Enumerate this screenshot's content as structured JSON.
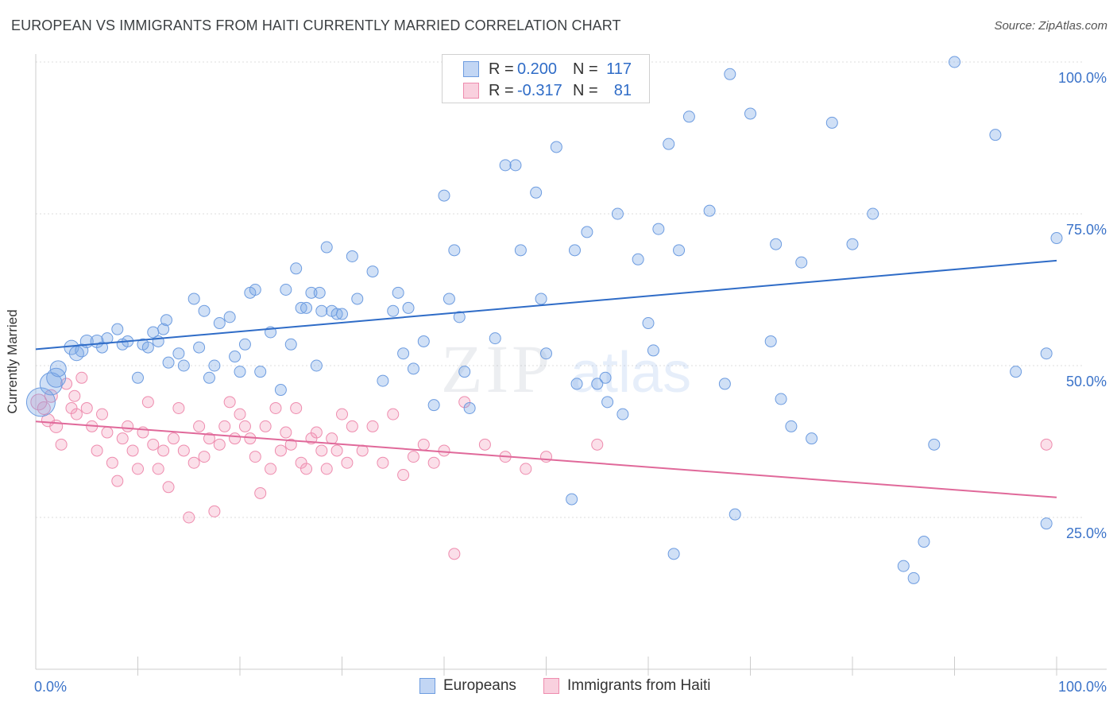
{
  "header": {
    "title": "EUROPEAN VS IMMIGRANTS FROM HAITI CURRENTLY MARRIED CORRELATION CHART",
    "source": "Source: ZipAtlas.com"
  },
  "watermark": {
    "zip": "ZIP",
    "atlas": "atlas"
  },
  "legend_top": {
    "rows": [
      {
        "r_label": "R =",
        "r_value": "0.200",
        "n_label": "N =",
        "n_value": "117",
        "color": "#7aa6e6"
      },
      {
        "r_label": "R =",
        "r_value": "-0.317",
        "n_label": "N =",
        "n_value": "81",
        "color": "#f29bb8"
      }
    ]
  },
  "bottom_legend": {
    "europeans": "Europeans",
    "haiti": "Immigrants from Haiti"
  },
  "colors": {
    "blue_fill": "rgba(120,165,230,0.35)",
    "blue_stroke": "#6d9ce0",
    "blue_line": "#2f6cc7",
    "pink_fill": "rgba(242,150,182,0.30)",
    "pink_stroke": "#ee8cae",
    "pink_line": "#e0699a",
    "grid": "#dddddd",
    "tick_label": "#3b73c9"
  },
  "chart_data": {
    "type": "scatter",
    "title": "EUROPEAN VS IMMIGRANTS FROM HAITI CURRENTLY MARRIED CORRELATION CHART",
    "xlabel": "",
    "ylabel": "Currently Married",
    "xlim": [
      0,
      100
    ],
    "ylim": [
      0,
      100
    ],
    "x_tick_labels": [
      "0.0%",
      "100.0%"
    ],
    "y_tick_labels": [
      {
        "value": 25,
        "label": "25.0%"
      },
      {
        "value": 50,
        "label": "50.0%"
      },
      {
        "value": 75,
        "label": "75.0%"
      },
      {
        "value": 100,
        "label": "100.0%"
      }
    ],
    "grid": true,
    "legend_position": "top-center",
    "series": [
      {
        "name": "Europeans",
        "R": 0.2,
        "N": 117,
        "trend": {
          "x": [
            0,
            100
          ],
          "y": [
            52.7,
            67.3
          ]
        },
        "points": [
          [
            0.5,
            44,
            18
          ],
          [
            1.5,
            47,
            14
          ],
          [
            2,
            48,
            12
          ],
          [
            2.2,
            49.5,
            10
          ],
          [
            3.5,
            53,
            9
          ],
          [
            4,
            52,
            9
          ],
          [
            4.5,
            52.5,
            8
          ],
          [
            5,
            54,
            8
          ],
          [
            6,
            54,
            8
          ],
          [
            6.5,
            53,
            7
          ],
          [
            7,
            54.5,
            7
          ],
          [
            8,
            56,
            7
          ],
          [
            8.5,
            53.5,
            7
          ],
          [
            9,
            54,
            7
          ],
          [
            10,
            48,
            7
          ],
          [
            10.5,
            53.5,
            7
          ],
          [
            11,
            53,
            7
          ],
          [
            11.5,
            55.5,
            7
          ],
          [
            12,
            54,
            7
          ],
          [
            12.5,
            56,
            7
          ],
          [
            12.8,
            57.5,
            7
          ],
          [
            13,
            50.5,
            7
          ],
          [
            14,
            52,
            7
          ],
          [
            14.5,
            50,
            7
          ],
          [
            15.5,
            61,
            7
          ],
          [
            16,
            53,
            7
          ],
          [
            16.5,
            59,
            7
          ],
          [
            17,
            48,
            7
          ],
          [
            17.5,
            50,
            7
          ],
          [
            18,
            57,
            7
          ],
          [
            19,
            58,
            7
          ],
          [
            19.5,
            51.5,
            7
          ],
          [
            20,
            49,
            7
          ],
          [
            20.5,
            53.5,
            7
          ],
          [
            21,
            62,
            7
          ],
          [
            21.5,
            62.5,
            7
          ],
          [
            22,
            49,
            7
          ],
          [
            23,
            55.5,
            7
          ],
          [
            24,
            46,
            7
          ],
          [
            24.5,
            62.5,
            7
          ],
          [
            25,
            53.5,
            7
          ],
          [
            25.5,
            66,
            7
          ],
          [
            26,
            59.5,
            7
          ],
          [
            26.5,
            59.5,
            7
          ],
          [
            27,
            62,
            7
          ],
          [
            27.5,
            50,
            7
          ],
          [
            27.8,
            62,
            7
          ],
          [
            28,
            59,
            7
          ],
          [
            28.5,
            69.5,
            7
          ],
          [
            29,
            59,
            7
          ],
          [
            29.5,
            58.5,
            7
          ],
          [
            30,
            58.5,
            7
          ],
          [
            31,
            68,
            7
          ],
          [
            31.5,
            61,
            7
          ],
          [
            33,
            65.5,
            7
          ],
          [
            34,
            47.5,
            7
          ],
          [
            35,
            59,
            7
          ],
          [
            35.5,
            62,
            7
          ],
          [
            36,
            52,
            7
          ],
          [
            36.5,
            59.5,
            7
          ],
          [
            37,
            49.5,
            7
          ],
          [
            38,
            54,
            7
          ],
          [
            39,
            43.5,
            7
          ],
          [
            40,
            78,
            7
          ],
          [
            40.5,
            61,
            7
          ],
          [
            41,
            69,
            7
          ],
          [
            41.5,
            58,
            7
          ],
          [
            42,
            49,
            7
          ],
          [
            42.5,
            43,
            7
          ],
          [
            45,
            54.5,
            7
          ],
          [
            46,
            83,
            7
          ],
          [
            47,
            83,
            7
          ],
          [
            47.5,
            69,
            7
          ],
          [
            49,
            78.5,
            7
          ],
          [
            49.5,
            61,
            7
          ],
          [
            50,
            52,
            7
          ],
          [
            51,
            86,
            7
          ],
          [
            52,
            100,
            7
          ],
          [
            52.5,
            28,
            7
          ],
          [
            52.8,
            69,
            7
          ],
          [
            53,
            47,
            7
          ],
          [
            54,
            72,
            7
          ],
          [
            55,
            47,
            7
          ],
          [
            55.5,
            95,
            7
          ],
          [
            55.8,
            48,
            7
          ],
          [
            56,
            44,
            7
          ],
          [
            57,
            75,
            7
          ],
          [
            57.5,
            42,
            7
          ],
          [
            59,
            67.5,
            7
          ],
          [
            60,
            57,
            7
          ],
          [
            60.5,
            52.5,
            7
          ],
          [
            61,
            72.5,
            7
          ],
          [
            62,
            86.5,
            7
          ],
          [
            62.5,
            19,
            7
          ],
          [
            63,
            69,
            7
          ],
          [
            64,
            91,
            7
          ],
          [
            66,
            75.5,
            7
          ],
          [
            67.5,
            47,
            7
          ],
          [
            68,
            98,
            7
          ],
          [
            68.5,
            25.5,
            7
          ],
          [
            70,
            91.5,
            7
          ],
          [
            72,
            54,
            7
          ],
          [
            72.5,
            70,
            7
          ],
          [
            73,
            44.5,
            7
          ],
          [
            74,
            40,
            7
          ],
          [
            75,
            67,
            7
          ],
          [
            76,
            38,
            7
          ],
          [
            78,
            90,
            7
          ],
          [
            80,
            70,
            7
          ],
          [
            82,
            75,
            7
          ],
          [
            85,
            17,
            7
          ],
          [
            86,
            15,
            7
          ],
          [
            87,
            21,
            7
          ],
          [
            88,
            37,
            7
          ],
          [
            90,
            100,
            7
          ],
          [
            94,
            88,
            7
          ],
          [
            96,
            49,
            7
          ],
          [
            99,
            52,
            7
          ],
          [
            99,
            24,
            7
          ],
          [
            100,
            71,
            7
          ]
        ]
      },
      {
        "name": "Immigrants from Haiti",
        "R": -0.317,
        "N": 81,
        "trend": {
          "x": [
            0,
            100
          ],
          "y": [
            40.8,
            28.3
          ]
        },
        "points": [
          [
            0.3,
            44,
            10
          ],
          [
            0.8,
            43,
            8
          ],
          [
            1.2,
            41,
            8
          ],
          [
            1.5,
            45,
            8
          ],
          [
            2,
            40,
            8
          ],
          [
            2.5,
            37,
            7
          ],
          [
            3,
            47,
            7
          ],
          [
            3.5,
            43,
            7
          ],
          [
            3.8,
            45,
            7
          ],
          [
            4,
            42,
            7
          ],
          [
            4.5,
            48,
            7
          ],
          [
            5,
            43,
            7
          ],
          [
            5.5,
            40,
            7
          ],
          [
            6,
            36,
            7
          ],
          [
            6.5,
            42,
            7
          ],
          [
            7,
            39,
            7
          ],
          [
            7.5,
            34,
            7
          ],
          [
            8,
            31,
            7
          ],
          [
            8.5,
            38,
            7
          ],
          [
            9,
            40,
            7
          ],
          [
            9.5,
            36,
            7
          ],
          [
            10,
            33,
            7
          ],
          [
            10.5,
            39,
            7
          ],
          [
            11,
            44,
            7
          ],
          [
            11.5,
            37,
            7
          ],
          [
            12,
            33,
            7
          ],
          [
            12.5,
            36,
            7
          ],
          [
            13,
            30,
            7
          ],
          [
            13.5,
            38,
            7
          ],
          [
            14,
            43,
            7
          ],
          [
            14.5,
            36,
            7
          ],
          [
            15,
            25,
            7
          ],
          [
            15.5,
            34,
            7
          ],
          [
            16,
            40,
            7
          ],
          [
            16.5,
            35,
            7
          ],
          [
            17,
            38,
            7
          ],
          [
            17.5,
            26,
            7
          ],
          [
            18,
            37,
            7
          ],
          [
            18.5,
            40,
            7
          ],
          [
            19,
            44,
            7
          ],
          [
            19.5,
            38,
            7
          ],
          [
            20,
            42,
            7
          ],
          [
            20.5,
            40,
            7
          ],
          [
            21,
            38,
            7
          ],
          [
            21.5,
            35,
            7
          ],
          [
            22,
            29,
            7
          ],
          [
            22.5,
            40,
            7
          ],
          [
            23,
            33,
            7
          ],
          [
            23.5,
            43,
            7
          ],
          [
            24,
            36,
            7
          ],
          [
            24.5,
            39,
            7
          ],
          [
            25,
            37,
            7
          ],
          [
            25.5,
            43,
            7
          ],
          [
            26,
            34,
            7
          ],
          [
            26.5,
            33,
            7
          ],
          [
            27,
            38,
            7
          ],
          [
            27.5,
            39,
            7
          ],
          [
            28,
            36,
            7
          ],
          [
            28.5,
            33,
            7
          ],
          [
            29,
            38,
            7
          ],
          [
            29.5,
            36,
            7
          ],
          [
            30,
            42,
            7
          ],
          [
            30.5,
            34,
            7
          ],
          [
            31,
            40,
            7
          ],
          [
            32,
            36,
            7
          ],
          [
            33,
            40,
            7
          ],
          [
            34,
            34,
            7
          ],
          [
            35,
            42,
            7
          ],
          [
            36,
            32,
            7
          ],
          [
            37,
            35,
            7
          ],
          [
            38,
            37,
            7
          ],
          [
            39,
            34,
            7
          ],
          [
            40,
            36,
            7
          ],
          [
            41,
            19,
            7
          ],
          [
            42,
            44,
            7
          ],
          [
            44,
            37,
            7
          ],
          [
            46,
            35,
            7
          ],
          [
            48,
            33,
            7
          ],
          [
            50,
            35,
            7
          ],
          [
            55,
            37,
            7
          ],
          [
            99,
            37,
            7
          ]
        ]
      }
    ]
  }
}
